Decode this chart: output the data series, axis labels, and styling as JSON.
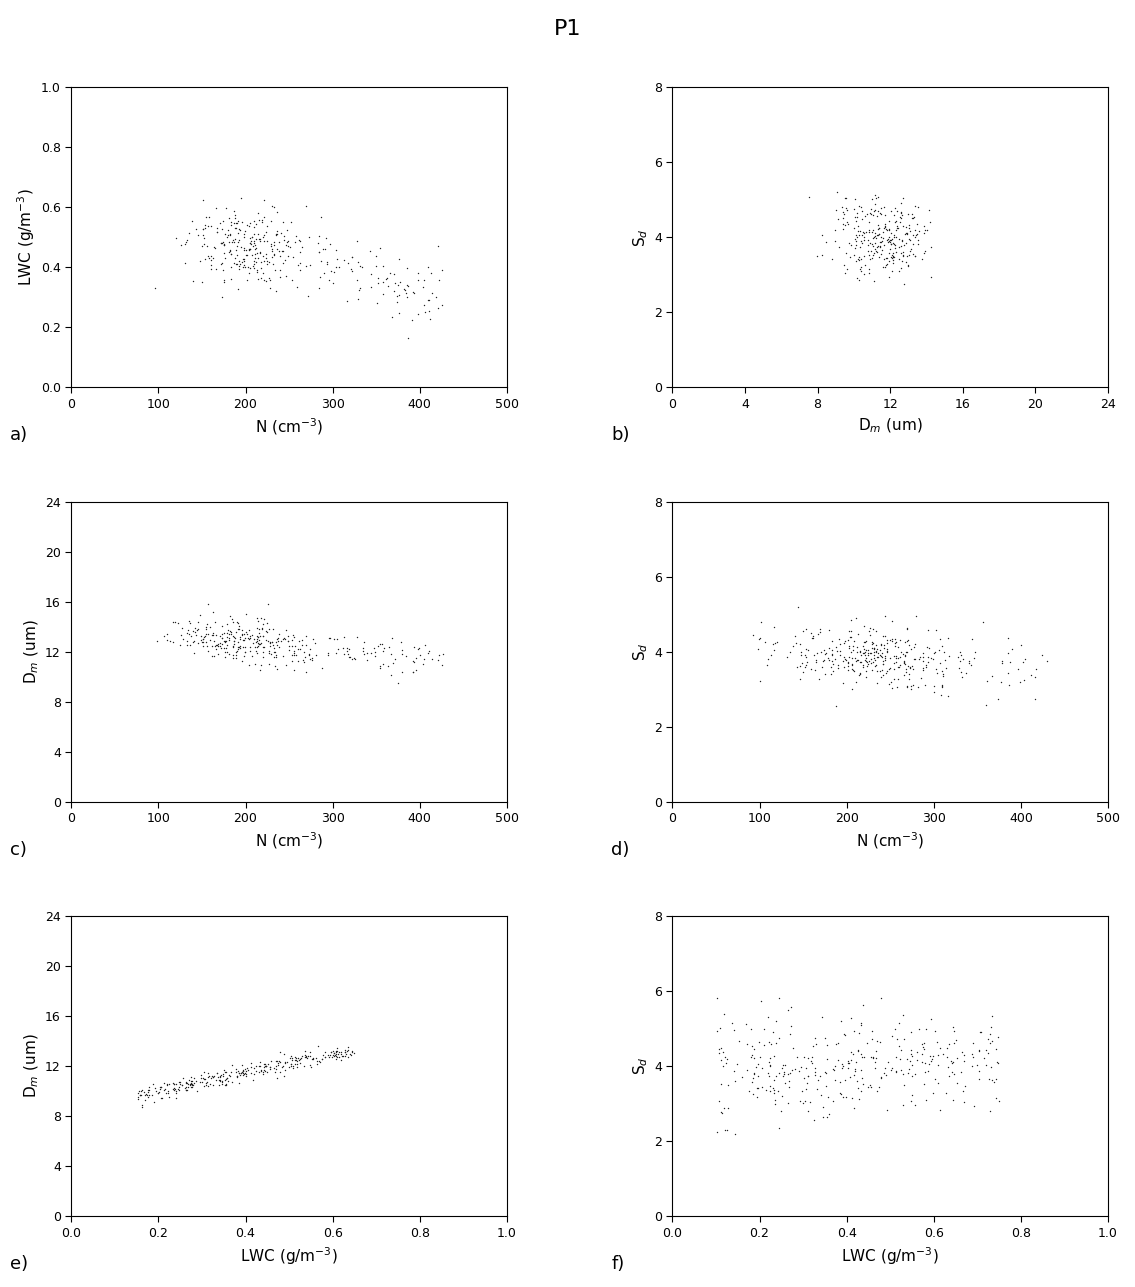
{
  "title": "P1",
  "title_fontsize": 16,
  "subplot_labels": [
    "a)",
    "b)",
    "c)",
    "d)",
    "e)",
    "f)"
  ],
  "panels": [
    {
      "xlabel": "N (cm⁻³)",
      "ylabel": "LWC (g/m⁻³)",
      "xlim": [
        0,
        500
      ],
      "ylim": [
        0.0,
        1.0
      ],
      "xticks": [
        0,
        100,
        200,
        300,
        400,
        500
      ],
      "yticks": [
        0.0,
        0.2,
        0.4,
        0.6,
        0.8,
        1.0
      ]
    },
    {
      "xlabel": "D_m (um)",
      "ylabel": "S_d",
      "xlim": [
        0,
        24
      ],
      "ylim": [
        0,
        8
      ],
      "xticks": [
        0,
        4,
        8,
        12,
        16,
        20,
        24
      ],
      "yticks": [
        0,
        2,
        4,
        6,
        8
      ]
    },
    {
      "xlabel": "N (cm⁻³)",
      "ylabel": "D_m (um)",
      "xlim": [
        0,
        500
      ],
      "ylim": [
        0,
        24
      ],
      "xticks": [
        0,
        100,
        200,
        300,
        400,
        500
      ],
      "yticks": [
        0,
        4,
        8,
        12,
        16,
        20,
        24
      ]
    },
    {
      "xlabel": "N (cm⁻³)",
      "ylabel": "S_d",
      "xlim": [
        0,
        500
      ],
      "ylim": [
        0,
        8
      ],
      "xticks": [
        0,
        100,
        200,
        300,
        400,
        500
      ],
      "yticks": [
        0,
        2,
        4,
        6,
        8
      ]
    },
    {
      "xlabel": "LWC (g/m⁻³)",
      "ylabel": "D_m (um)",
      "xlim": [
        0.0,
        1.0
      ],
      "ylim": [
        0,
        24
      ],
      "xticks": [
        0.0,
        0.2,
        0.4,
        0.6,
        0.8,
        1.0
      ],
      "yticks": [
        0,
        4,
        8,
        12,
        16,
        20,
        24
      ]
    },
    {
      "xlabel": "LWC (g/m⁻³)",
      "ylabel": "S_d",
      "xlim": [
        0.0,
        1.0
      ],
      "ylim": [
        0,
        8
      ],
      "xticks": [
        0.0,
        0.2,
        0.4,
        0.6,
        0.8,
        1.0
      ],
      "yticks": [
        0,
        2,
        4,
        6,
        8
      ]
    }
  ],
  "marker_size": 4,
  "marker_color": "#222222",
  "background_color": "white",
  "figsize": [
    11.35,
    12.87
  ],
  "dpi": 100
}
